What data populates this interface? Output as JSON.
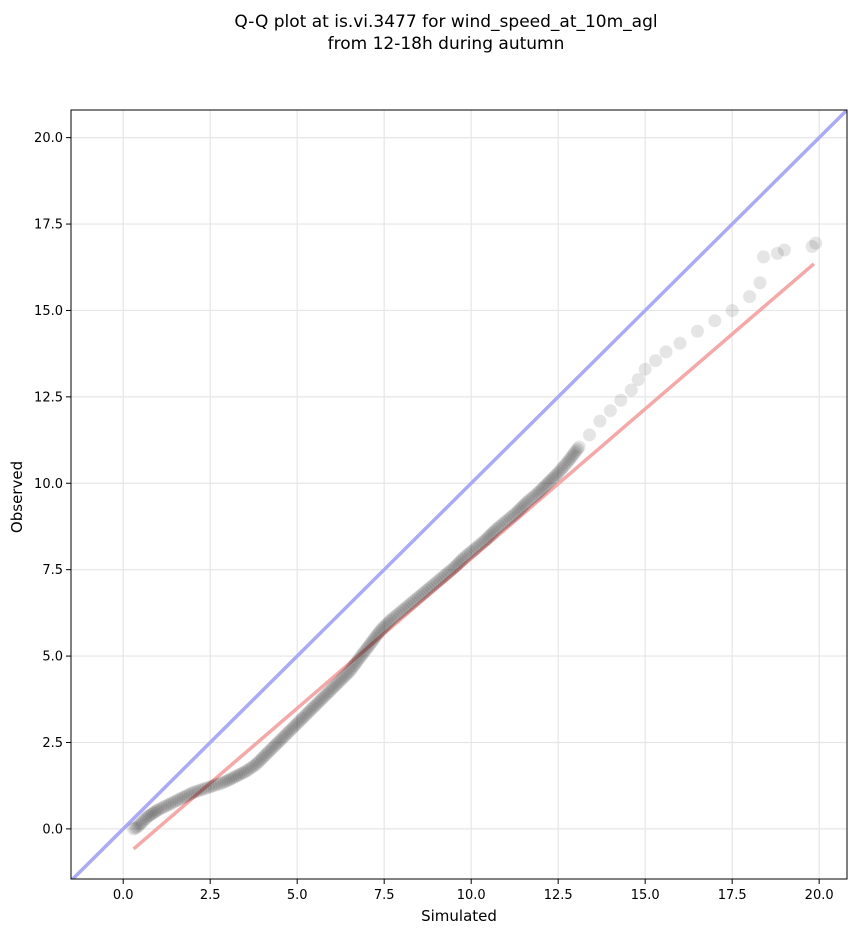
{
  "chart_data": {
    "type": "scatter",
    "title_line1": "Q-Q plot at is.vi.3477 for wind_speed_at_10m_agl",
    "title_line2": "from 12-18h during autumn",
    "xlabel": "Simulated",
    "ylabel": "Observed",
    "xlim": [
      -1.5,
      20.8
    ],
    "ylim": [
      -1.45,
      20.8
    ],
    "xticks": [
      "0.0",
      "2.5",
      "5.0",
      "7.5",
      "10.0",
      "12.5",
      "15.0",
      "17.5",
      "20.0"
    ],
    "yticks": [
      "0.0",
      "2.5",
      "5.0",
      "7.5",
      "10.0",
      "12.5",
      "15.0",
      "17.5",
      "20.0"
    ],
    "grid": true,
    "identity_line": {
      "color": "#aaaaf5",
      "x": [
        -1.5,
        20.8
      ],
      "y": [
        -1.5,
        20.8
      ]
    },
    "fit_line": {
      "color": "#f5a8a8",
      "x": [
        0.3,
        19.85
      ],
      "y": [
        -0.58,
        16.35
      ]
    },
    "point_color": "#000000",
    "quantiles": [
      [
        0.3,
        0.0
      ],
      [
        0.4,
        0.05
      ],
      [
        0.5,
        0.15
      ],
      [
        0.6,
        0.25
      ],
      [
        0.7,
        0.35
      ],
      [
        0.85,
        0.45
      ],
      [
        1.0,
        0.55
      ],
      [
        1.2,
        0.65
      ],
      [
        1.4,
        0.75
      ],
      [
        1.6,
        0.85
      ],
      [
        1.8,
        0.95
      ],
      [
        2.0,
        1.05
      ],
      [
        2.3,
        1.15
      ],
      [
        2.6,
        1.25
      ],
      [
        2.9,
        1.35
      ],
      [
        3.2,
        1.5
      ],
      [
        3.5,
        1.65
      ],
      [
        3.8,
        1.85
      ],
      [
        4.1,
        2.15
      ],
      [
        4.4,
        2.45
      ],
      [
        4.7,
        2.75
      ],
      [
        5.0,
        3.05
      ],
      [
        5.3,
        3.35
      ],
      [
        5.6,
        3.65
      ],
      [
        5.9,
        3.95
      ],
      [
        6.2,
        4.25
      ],
      [
        6.5,
        4.55
      ],
      [
        6.8,
        4.95
      ],
      [
        7.1,
        5.35
      ],
      [
        7.4,
        5.75
      ],
      [
        7.7,
        6.05
      ],
      [
        8.0,
        6.3
      ],
      [
        8.3,
        6.55
      ],
      [
        8.6,
        6.8
      ],
      [
        8.9,
        7.05
      ],
      [
        9.2,
        7.3
      ],
      [
        9.5,
        7.55
      ],
      [
        9.8,
        7.85
      ],
      [
        10.1,
        8.1
      ],
      [
        10.4,
        8.35
      ],
      [
        10.7,
        8.65
      ],
      [
        11.0,
        8.9
      ],
      [
        11.3,
        9.15
      ],
      [
        11.6,
        9.45
      ],
      [
        11.9,
        9.7
      ],
      [
        12.2,
        10.0
      ],
      [
        12.5,
        10.3
      ],
      [
        12.8,
        10.65
      ],
      [
        13.1,
        11.05
      ],
      [
        13.4,
        11.4
      ],
      [
        13.7,
        11.8
      ],
      [
        14.0,
        12.1
      ],
      [
        14.3,
        12.4
      ],
      [
        14.6,
        12.7
      ],
      [
        14.8,
        13.0
      ],
      [
        15.0,
        13.3
      ],
      [
        15.3,
        13.55
      ],
      [
        15.6,
        13.8
      ],
      [
        16.0,
        14.05
      ],
      [
        16.5,
        14.4
      ],
      [
        17.0,
        14.7
      ],
      [
        17.5,
        15.0
      ],
      [
        18.0,
        15.4
      ],
      [
        18.3,
        15.8
      ],
      [
        18.4,
        16.55
      ],
      [
        18.8,
        16.65
      ],
      [
        19.0,
        16.75
      ],
      [
        19.8,
        16.85
      ],
      [
        19.9,
        16.95
      ]
    ]
  }
}
